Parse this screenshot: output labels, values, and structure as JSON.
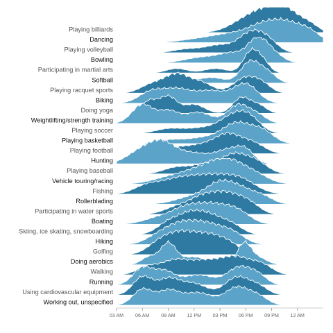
{
  "chart_data": {
    "type": "area",
    "subtype": "ridgeline",
    "title": "",
    "xlabel": "",
    "ylabel": "",
    "x_domain_hours": [
      3,
      27
    ],
    "x_ticks": [
      {
        "hour": 3,
        "label": "03 AM"
      },
      {
        "hour": 6,
        "label": "06 AM"
      },
      {
        "hour": 9,
        "label": "09 AM"
      },
      {
        "hour": 12,
        "label": "12 PM"
      },
      {
        "hour": 15,
        "label": "03 PM"
      },
      {
        "hour": 18,
        "label": "06 PM"
      },
      {
        "hour": 21,
        "label": "09 PM"
      },
      {
        "hour": 24,
        "label": "12 AM"
      }
    ],
    "colors": {
      "light": "#5ba3c8",
      "dark": "#2e7aa2",
      "label_dark": "#111111",
      "label_light": "#555555",
      "outline": "#ffffff"
    },
    "series": [
      {
        "name": "Playing billiards",
        "label_style": "light",
        "shade": "dark",
        "peaks": [
          [
            17.5,
            0.28,
            1.8
          ],
          [
            20.5,
            0.95,
            2.2
          ],
          [
            23,
            0.6,
            1.6
          ],
          [
            25.5,
            0.25,
            1.0
          ]
        ]
      },
      {
        "name": "Dancing",
        "label_style": "dark",
        "shade": "light",
        "peaks": [
          [
            12,
            0.12,
            2
          ],
          [
            16,
            0.35,
            2.2
          ],
          [
            20,
            0.7,
            1.9
          ],
          [
            23,
            0.75,
            1.8
          ],
          [
            25.5,
            0.35,
            1.2
          ]
        ]
      },
      {
        "name": "Playing volleyball",
        "label_style": "light",
        "shade": "dark",
        "peaks": [
          [
            11,
            0.15,
            1.5
          ],
          [
            15,
            0.35,
            1.8
          ],
          [
            18.5,
            0.8,
            1.3
          ],
          [
            20.5,
            0.55,
            1.2
          ]
        ]
      },
      {
        "name": "Bowling",
        "label_style": "dark",
        "shade": "light",
        "peaks": [
          [
            13,
            0.25,
            2.0
          ],
          [
            16.5,
            0.4,
            1.5
          ],
          [
            19.3,
            0.95,
            1.1
          ],
          [
            21,
            0.45,
            1.2
          ]
        ]
      },
      {
        "name": "Participating in martial arts",
        "label_style": "light",
        "shade": "dark",
        "peaks": [
          [
            10,
            0.2,
            1.2
          ],
          [
            14.5,
            0.2,
            1.3
          ],
          [
            18.6,
            0.95,
            0.9
          ],
          [
            20,
            0.45,
            0.8
          ]
        ]
      },
      {
        "name": "Softball",
        "label_style": "dark",
        "shade": "light",
        "peaks": [
          [
            10,
            0.15,
            1.3
          ],
          [
            14,
            0.25,
            1.5
          ],
          [
            18.5,
            0.95,
            1.1
          ],
          [
            20.5,
            0.45,
            1.0
          ]
        ]
      },
      {
        "name": "Playing racquet sports",
        "label_style": "light",
        "shade": "dark",
        "peaks": [
          [
            7,
            0.35,
            1.3
          ],
          [
            10,
            0.85,
            1.5
          ],
          [
            13,
            0.4,
            1.3
          ],
          [
            18,
            0.7,
            1.4
          ],
          [
            20,
            0.3,
            1.0
          ]
        ]
      },
      {
        "name": "Biking",
        "label_style": "dark",
        "shade": "light",
        "peaks": [
          [
            7,
            0.5,
            1.4
          ],
          [
            10,
            0.6,
            1.6
          ],
          [
            14,
            0.55,
            1.8
          ],
          [
            18,
            0.85,
            1.4
          ]
        ]
      },
      {
        "name": "Doing yoga",
        "label_style": "light",
        "shade": "dark",
        "peaks": [
          [
            6.8,
            0.55,
            0.9
          ],
          [
            9,
            0.75,
            1.0
          ],
          [
            12,
            0.4,
            1.2
          ],
          [
            17.5,
            0.7,
            1.0
          ],
          [
            19.5,
            0.35,
            0.9
          ]
        ]
      },
      {
        "name": "Weightlifting/strength training",
        "label_style": "dark",
        "shade": "light",
        "peaks": [
          [
            6,
            0.85,
            1.2
          ],
          [
            9,
            0.55,
            1.2
          ],
          [
            12.5,
            0.5,
            1.5
          ],
          [
            17.2,
            0.85,
            1.3
          ],
          [
            19.5,
            0.3,
            1.0
          ]
        ]
      },
      {
        "name": "Playing soccer",
        "label_style": "light",
        "shade": "dark",
        "peaks": [
          [
            9,
            0.2,
            1.5
          ],
          [
            13,
            0.25,
            2.0
          ],
          [
            16.5,
            0.7,
            1.5
          ],
          [
            18.5,
            0.6,
            1.3
          ]
        ]
      },
      {
        "name": "Playing basketball",
        "label_style": "dark",
        "shade": "light",
        "peaks": [
          [
            9,
            0.15,
            1.5
          ],
          [
            13,
            0.25,
            2.0
          ],
          [
            17,
            0.9,
            1.7
          ],
          [
            20,
            0.5,
            1.3
          ]
        ]
      },
      {
        "name": "Playing football",
        "label_style": "light",
        "shade": "dark",
        "peaks": [
          [
            9,
            0.25,
            1.5
          ],
          [
            12.5,
            0.35,
            1.8
          ],
          [
            16,
            0.85,
            1.6
          ],
          [
            19,
            0.4,
            1.3
          ]
        ]
      },
      {
        "name": "Hunting",
        "label_style": "dark",
        "shade": "light",
        "peaks": [
          [
            5.5,
            0.45,
            1.5
          ],
          [
            8.2,
            0.95,
            1.6
          ],
          [
            12,
            0.45,
            1.8
          ],
          [
            16,
            0.6,
            1.5
          ],
          [
            18,
            0.5,
            1.0
          ]
        ]
      },
      {
        "name": "Playing baseball",
        "label_style": "light",
        "shade": "dark",
        "peaks": [
          [
            10,
            0.3,
            1.5
          ],
          [
            13.5,
            0.45,
            1.5
          ],
          [
            16.5,
            0.75,
            1.3
          ],
          [
            19,
            0.6,
            1.4
          ]
        ]
      },
      {
        "name": "Vehicle touring/racing",
        "label_style": "dark",
        "shade": "light",
        "peaks": [
          [
            9,
            0.25,
            2.0
          ],
          [
            13,
            0.65,
            2.2
          ],
          [
            16,
            0.85,
            1.8
          ],
          [
            19,
            0.4,
            1.6
          ]
        ]
      },
      {
        "name": "Fishing",
        "label_style": "light",
        "shade": "dark",
        "peaks": [
          [
            6.5,
            0.35,
            1.5
          ],
          [
            10,
            0.6,
            2.0
          ],
          [
            14,
            0.75,
            2.2
          ],
          [
            17.5,
            0.55,
            1.8
          ]
        ]
      },
      {
        "name": "Rollerblading",
        "label_style": "dark",
        "shade": "light",
        "peaks": [
          [
            12,
            0.35,
            2.0
          ],
          [
            15,
            0.8,
            1.5
          ],
          [
            17.5,
            0.6,
            1.5
          ],
          [
            20,
            0.3,
            1.2
          ]
        ]
      },
      {
        "name": "Participating in water sports",
        "label_style": "light",
        "shade": "dark",
        "peaks": [
          [
            10,
            0.3,
            1.5
          ],
          [
            13,
            0.7,
            1.6
          ],
          [
            16,
            0.85,
            1.7
          ],
          [
            18.5,
            0.35,
            1.2
          ]
        ]
      },
      {
        "name": "Boating",
        "label_style": "dark",
        "shade": "light",
        "peaks": [
          [
            8,
            0.3,
            1.8
          ],
          [
            11,
            0.6,
            1.6
          ],
          [
            14,
            0.8,
            1.8
          ],
          [
            17,
            0.55,
            1.5
          ]
        ]
      },
      {
        "name": "Skiing, ice skating, snowboarding",
        "label_style": "light",
        "shade": "dark",
        "peaks": [
          [
            9,
            0.5,
            1.3
          ],
          [
            11.5,
            0.8,
            1.4
          ],
          [
            14,
            0.75,
            1.5
          ],
          [
            16.5,
            0.35,
            1.2
          ]
        ]
      },
      {
        "name": "Hiking",
        "label_style": "dark",
        "shade": "light",
        "peaks": [
          [
            8,
            0.4,
            1.5
          ],
          [
            10.5,
            0.75,
            1.6
          ],
          [
            13.5,
            0.85,
            1.8
          ],
          [
            16.5,
            0.45,
            1.4
          ]
        ]
      },
      {
        "name": "Golfing",
        "label_style": "light",
        "shade": "dark",
        "peaks": [
          [
            8,
            0.5,
            1.4
          ],
          [
            10.5,
            0.85,
            1.6
          ],
          [
            13.5,
            0.75,
            1.6
          ],
          [
            16,
            0.45,
            1.4
          ]
        ]
      },
      {
        "name": "Doing aerobics",
        "label_style": "dark",
        "shade": "light",
        "peaks": [
          [
            6.8,
            0.35,
            0.9
          ],
          [
            9,
            0.95,
            0.9
          ],
          [
            12,
            0.35,
            1.5
          ],
          [
            17.8,
            0.95,
            0.8
          ],
          [
            19.5,
            0.3,
            1.0
          ]
        ]
      },
      {
        "name": "Walking",
        "label_style": "light",
        "shade": "dark",
        "peaks": [
          [
            6.5,
            0.35,
            1.2
          ],
          [
            9.5,
            0.55,
            1.5
          ],
          [
            13,
            0.6,
            2.0
          ],
          [
            17,
            0.75,
            1.8
          ],
          [
            20,
            0.35,
            1.2
          ]
        ]
      },
      {
        "name": "Running",
        "label_style": "dark",
        "shade": "light",
        "peaks": [
          [
            6,
            0.75,
            1.1
          ],
          [
            8.5,
            0.6,
            1.2
          ],
          [
            12.5,
            0.45,
            1.8
          ],
          [
            17.3,
            0.8,
            1.4
          ],
          [
            19.5,
            0.35,
            1.0
          ]
        ]
      },
      {
        "name": "Using cardiovascular equipment",
        "label_style": "light",
        "shade": "dark",
        "peaks": [
          [
            6,
            0.8,
            1.1
          ],
          [
            9,
            0.7,
            1.3
          ],
          [
            12,
            0.5,
            1.5
          ],
          [
            17,
            0.8,
            1.4
          ],
          [
            19.5,
            0.35,
            1.1
          ]
        ]
      },
      {
        "name": "Working out, unspecified",
        "label_style": "dark",
        "shade": "light",
        "peaks": [
          [
            6,
            0.7,
            1.1
          ],
          [
            9,
            0.65,
            1.3
          ],
          [
            12.5,
            0.55,
            1.6
          ],
          [
            17,
            0.8,
            1.4
          ],
          [
            19.5,
            0.35,
            1.1
          ]
        ]
      }
    ]
  }
}
